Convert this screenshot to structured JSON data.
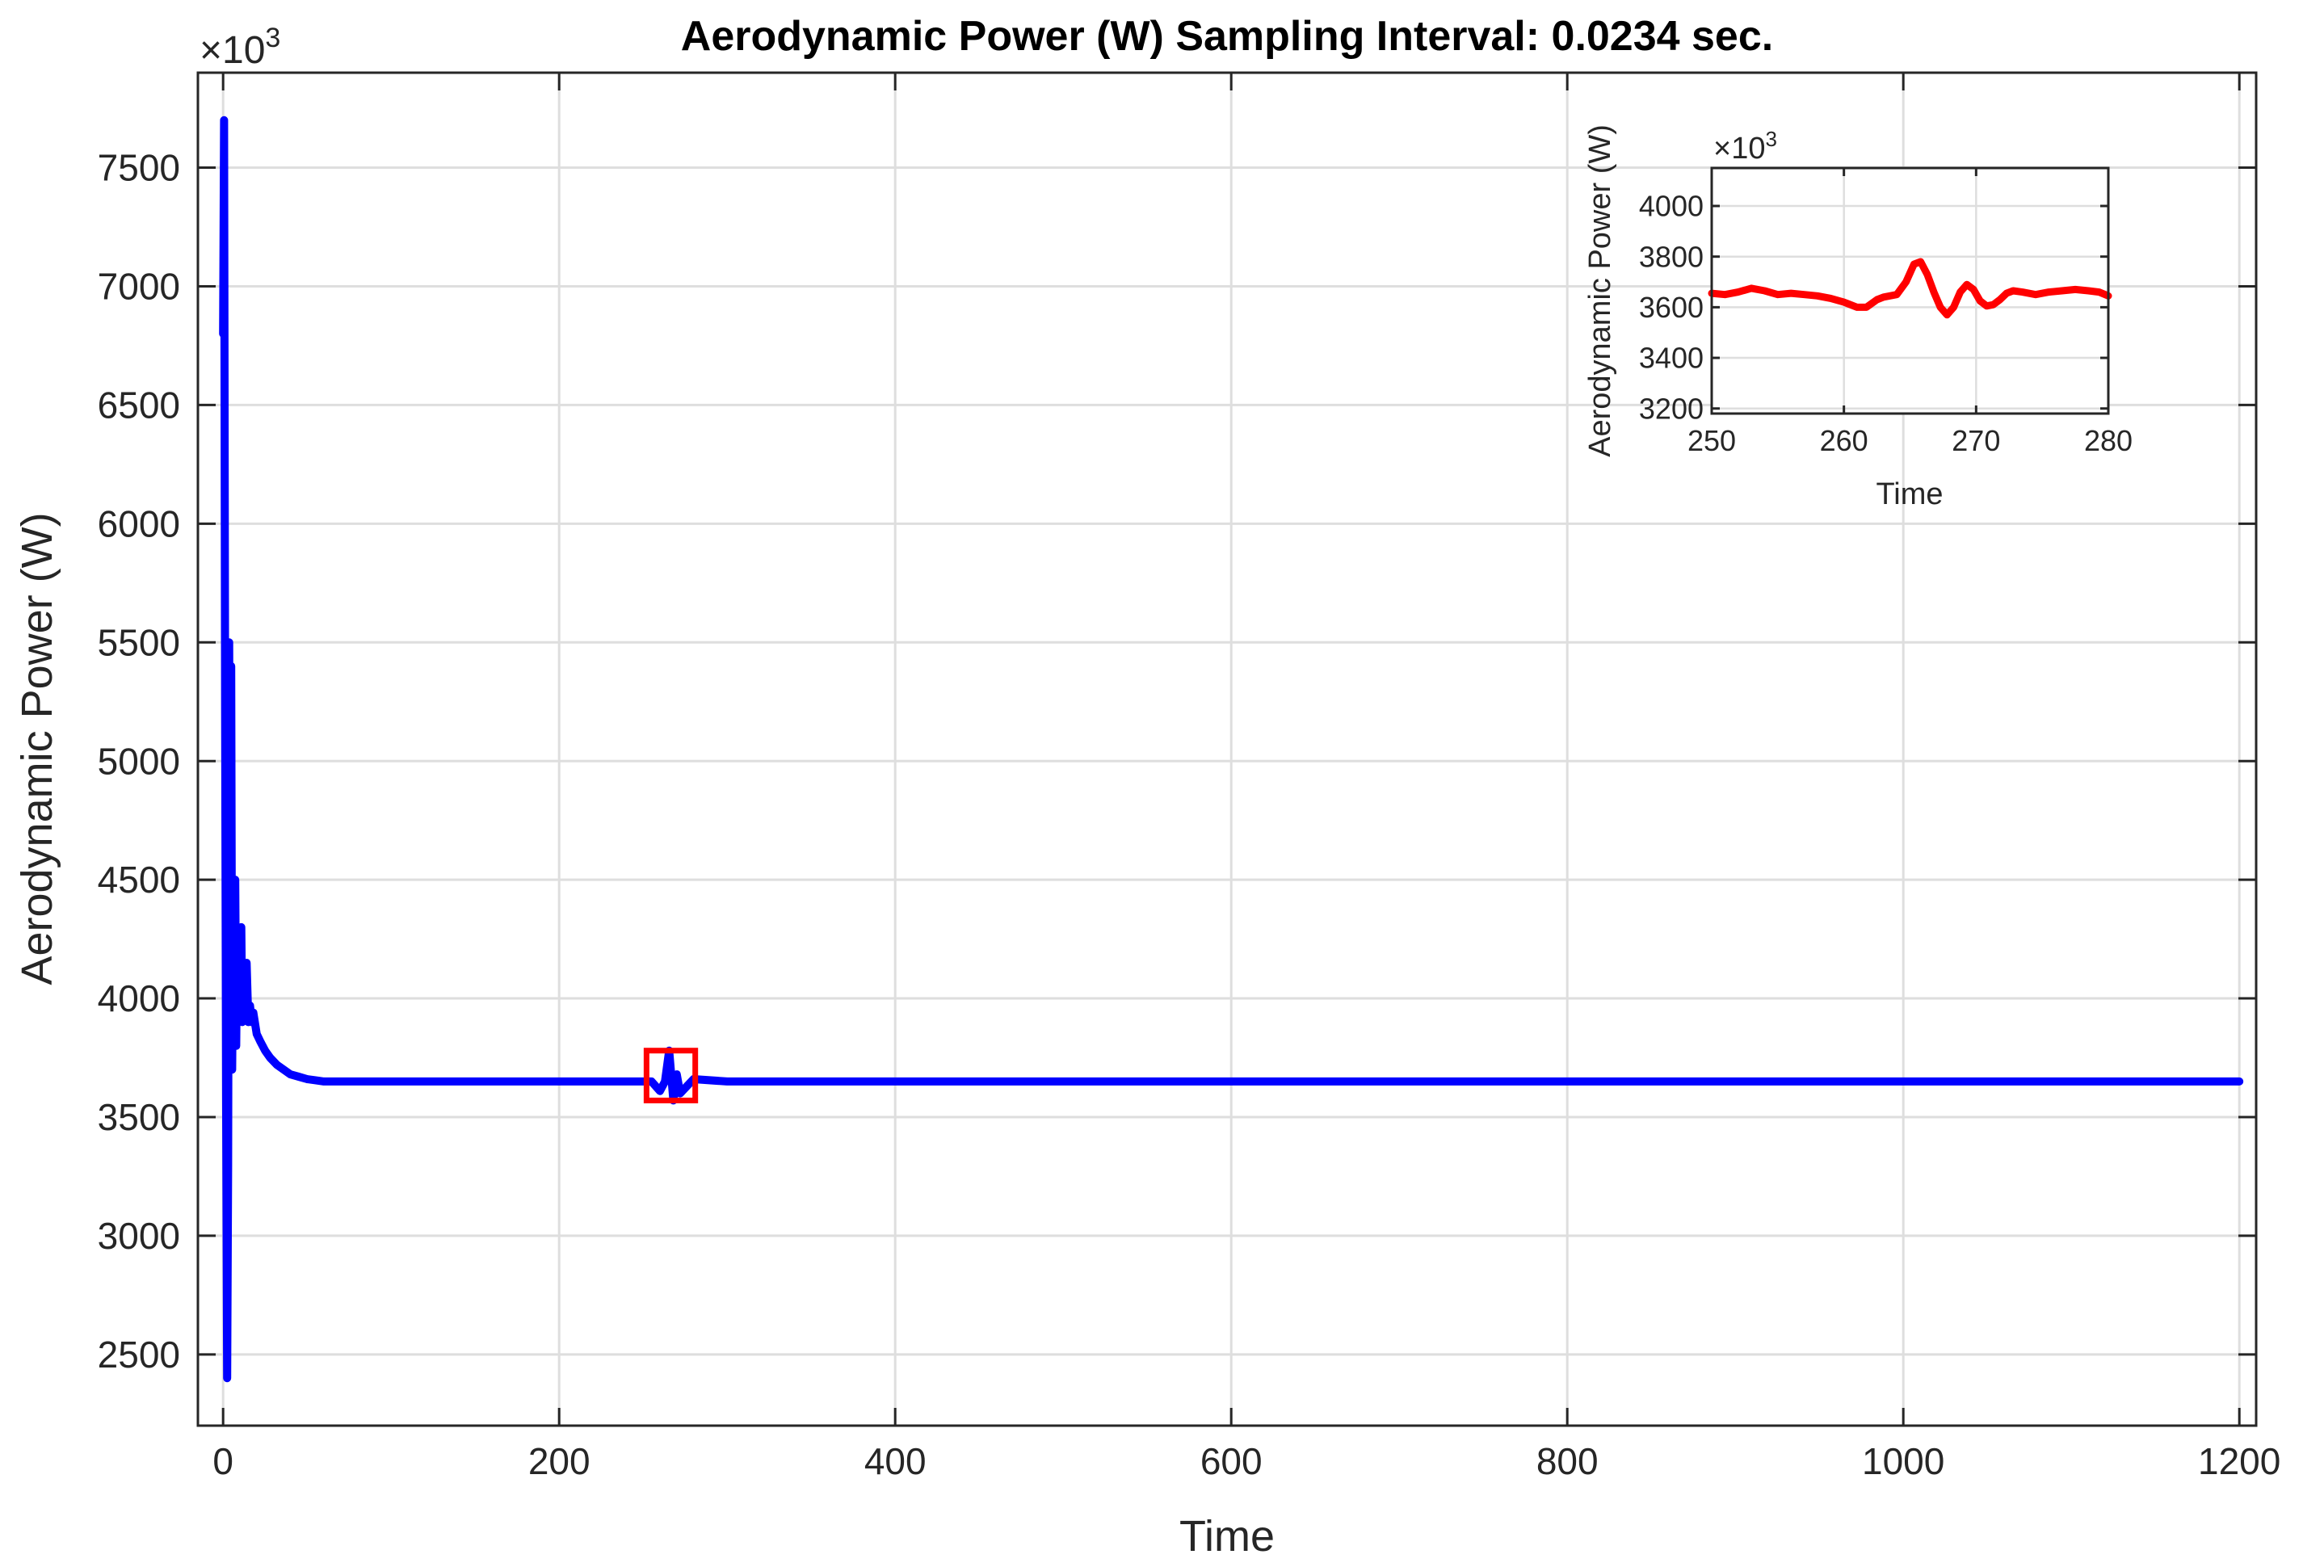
{
  "chart_data": [
    {
      "type": "line",
      "role": "main",
      "title": "Aerodynamic Power (W) Sampling Interval: 0.0234 sec.",
      "xlabel": "Time",
      "ylabel": "Aerodynamic Power (W)",
      "exponent_label": "×10",
      "exponent_power": "3",
      "xlim": [
        -15,
        1210
      ],
      "ylim": [
        2200,
        7900
      ],
      "x_ticks": [
        0,
        200,
        400,
        600,
        800,
        1000,
        1200
      ],
      "y_ticks": [
        2500,
        3000,
        3500,
        4000,
        4500,
        5000,
        5500,
        6000,
        6500,
        7000,
        7500
      ],
      "grid": true,
      "series": [
        {
          "color": "#0000ff",
          "x": [
            0,
            0.6,
            1.2,
            1.8,
            2.4,
            3.0,
            3.6,
            4.2,
            4.8,
            5.4,
            6.0,
            6.6,
            7.2,
            7.8,
            8.4,
            9.0,
            9.6,
            10.2,
            10.8,
            11.4,
            12.0,
            13,
            14,
            15,
            16,
            17,
            18,
            20,
            22,
            25,
            28,
            32,
            36,
            40,
            45,
            50,
            55,
            60,
            70,
            80,
            90,
            100,
            120,
            140,
            160,
            180,
            200,
            220,
            240,
            255,
            260,
            263,
            265.5,
            268,
            270,
            272,
            280,
            300,
            350,
            400,
            450,
            500,
            550,
            600,
            650,
            700,
            750,
            800,
            850,
            900,
            950,
            1000,
            1050,
            1100,
            1150,
            1200
          ],
          "values": [
            6800,
            7700,
            5200,
            3600,
            2400,
            3300,
            5500,
            4200,
            5400,
            3700,
            4300,
            4200,
            4500,
            3800,
            4300,
            3900,
            4000,
            4100,
            4300,
            3900,
            4000,
            3950,
            4150,
            3900,
            3970,
            3900,
            3940,
            3850,
            3820,
            3780,
            3750,
            3720,
            3700,
            3680,
            3670,
            3660,
            3655,
            3650,
            3650,
            3650,
            3650,
            3650,
            3650,
            3650,
            3650,
            3650,
            3650,
            3650,
            3650,
            3650,
            3610,
            3650,
            3780,
            3570,
            3680,
            3600,
            3660,
            3650,
            3650,
            3650,
            3650,
            3650,
            3650,
            3650,
            3650,
            3650,
            3650,
            3650,
            3650,
            3650,
            3650,
            3650,
            3650,
            3650,
            3650,
            3650
          ]
        }
      ],
      "highlight_box": {
        "x": [
          252,
          281
        ],
        "y": [
          3570,
          3780
        ],
        "color": "#ff0000"
      }
    },
    {
      "type": "line",
      "role": "inset",
      "title": "",
      "xlabel": "Time",
      "ylabel": "Aerodynamic Power (W)",
      "exponent_label": "×10",
      "exponent_power": "3",
      "xlim": [
        250,
        280
      ],
      "ylim": [
        3180,
        4150
      ],
      "x_ticks": [
        250,
        260,
        270,
        280
      ],
      "y_ticks": [
        3200,
        3400,
        3600,
        3800,
        4000
      ],
      "grid": true,
      "series": [
        {
          "color": "#ff0000",
          "x": [
            250,
            251,
            252,
            253,
            254,
            255,
            256,
            257,
            258,
            259,
            260,
            261,
            261.7,
            262.5,
            263,
            264,
            264.7,
            265.3,
            265.8,
            266.3,
            266.8,
            267.3,
            267.8,
            268.3,
            268.8,
            269.3,
            269.8,
            270.3,
            270.8,
            271.3,
            271.8,
            272.3,
            272.8,
            273.5,
            274.5,
            275.5,
            276.5,
            277.5,
            278.5,
            279.3,
            280
          ],
          "values": [
            3655,
            3650,
            3660,
            3675,
            3665,
            3650,
            3655,
            3650,
            3645,
            3635,
            3620,
            3600,
            3600,
            3630,
            3640,
            3650,
            3700,
            3770,
            3780,
            3730,
            3660,
            3600,
            3570,
            3600,
            3660,
            3690,
            3670,
            3625,
            3605,
            3610,
            3630,
            3655,
            3665,
            3660,
            3650,
            3660,
            3665,
            3670,
            3665,
            3660,
            3645
          ]
        }
      ]
    }
  ]
}
